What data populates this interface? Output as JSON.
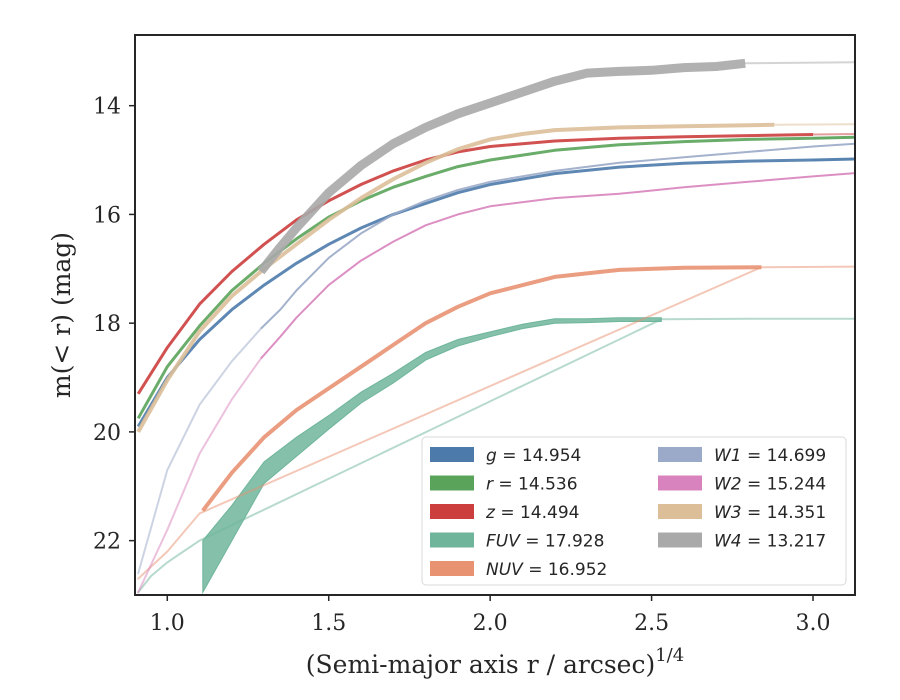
{
  "chart_data": {
    "type": "line",
    "xlabel": "(Semi-major axis r / arcsec)",
    "xlabel_exponent": "1/4",
    "ylabel": "m(< r) (mag)",
    "xlim": [
      0.9,
      3.13
    ],
    "ylim": [
      23.0,
      12.7
    ],
    "y_inverted": true,
    "xticks": [
      1.0,
      1.5,
      2.0,
      2.5,
      3.0
    ],
    "xtick_labels": [
      "1.0",
      "1.5",
      "2.0",
      "2.5",
      "3.0"
    ],
    "yticks": [
      14,
      16,
      18,
      20,
      22
    ],
    "ytick_labels": [
      "14",
      "16",
      "18",
      "20",
      "22"
    ],
    "legend_placement": "lower-right",
    "grid": false,
    "series": [
      {
        "name": "g",
        "label_value": "= 14.954",
        "color": "#4c7bab",
        "band": {
          "x": [
            0.91,
            1.0,
            1.1,
            1.2,
            1.3,
            1.4,
            1.5,
            1.6,
            1.7,
            1.8,
            1.9,
            2.0,
            2.2,
            2.4,
            2.6,
            2.8,
            3.0,
            3.13
          ],
          "y": [
            19.9,
            19.0,
            18.3,
            17.75,
            17.3,
            16.9,
            16.55,
            16.25,
            16.0,
            15.8,
            15.6,
            15.45,
            15.25,
            15.13,
            15.06,
            15.02,
            15.0,
            14.98
          ],
          "width": 3
        },
        "extension": {
          "x": [
            3.0,
            3.13
          ],
          "y": [
            15.0,
            14.98
          ]
        }
      },
      {
        "name": "r",
        "label_value": "= 14.536",
        "color": "#5aa35a",
        "band": {
          "x": [
            0.91,
            1.0,
            1.1,
            1.2,
            1.3,
            1.4,
            1.5,
            1.6,
            1.7,
            1.8,
            1.9,
            2.0,
            2.2,
            2.4,
            2.6,
            2.8,
            3.0,
            3.13
          ],
          "y": [
            19.75,
            18.8,
            18.05,
            17.4,
            16.9,
            16.45,
            16.05,
            15.75,
            15.5,
            15.3,
            15.12,
            15.0,
            14.82,
            14.72,
            14.66,
            14.62,
            14.6,
            14.58
          ],
          "width": 3
        },
        "extension": {
          "x": [
            3.0,
            3.13
          ],
          "y": [
            14.6,
            14.58
          ]
        }
      },
      {
        "name": "z",
        "label_value": "= 14.494",
        "color": "#cc3d3d",
        "band": {
          "x": [
            0.91,
            1.0,
            1.1,
            1.2,
            1.3,
            1.4,
            1.5,
            1.6,
            1.7,
            1.8,
            1.9,
            2.0,
            2.2,
            2.4,
            2.6,
            2.8,
            3.0
          ],
          "y": [
            19.3,
            18.45,
            17.65,
            17.05,
            16.55,
            16.1,
            15.75,
            15.45,
            15.2,
            15.0,
            14.85,
            14.75,
            14.65,
            14.6,
            14.57,
            14.55,
            14.53
          ],
          "width": 3
        },
        "extension": {
          "x": [
            3.0,
            3.13
          ],
          "y": [
            14.53,
            14.52
          ]
        }
      },
      {
        "name": "FUV",
        "label_value": "= 17.928",
        "color": "#6fb59b",
        "band": {
          "x": [
            1.11,
            1.2,
            1.3,
            1.4,
            1.5,
            1.6,
            1.7,
            1.8,
            1.9,
            2.0,
            2.1,
            2.2,
            2.3,
            2.4,
            2.5,
            2.53
          ],
          "y": [
            22.45,
            21.65,
            20.75,
            20.25,
            19.8,
            19.35,
            19.0,
            18.6,
            18.35,
            18.2,
            18.05,
            17.95,
            17.95,
            17.93,
            17.93,
            17.93
          ],
          "width_top": [
            22.0,
            21.35,
            20.55,
            20.1,
            19.7,
            19.27,
            18.92,
            18.54,
            18.3,
            18.16,
            18.02,
            17.92,
            17.92,
            17.9,
            17.9,
            17.9
          ],
          "width_bottom": [
            22.95,
            22.0,
            20.95,
            20.45,
            19.95,
            19.47,
            19.1,
            18.68,
            18.42,
            18.25,
            18.1,
            18.0,
            17.99,
            17.97,
            17.97,
            17.97
          ]
        },
        "extension": {
          "x": [
            0.91,
            0.95,
            1.0,
            1.05,
            1.1,
            2.53,
            2.8,
            3.13
          ],
          "y": [
            22.95,
            22.65,
            22.4,
            22.2,
            22.0,
            17.93,
            17.92,
            17.92
          ]
        }
      },
      {
        "name": "NUV",
        "label_value": "= 16.952",
        "color": "#e89272",
        "band": {
          "x": [
            1.11,
            1.2,
            1.3,
            1.4,
            1.5,
            1.6,
            1.7,
            1.8,
            1.9,
            2.0,
            2.2,
            2.4,
            2.6,
            2.84
          ],
          "y": [
            21.45,
            20.75,
            20.1,
            19.6,
            19.2,
            18.8,
            18.4,
            18.0,
            17.7,
            17.45,
            17.15,
            17.02,
            16.98,
            16.97
          ],
          "width": 4
        },
        "extension": {
          "x": [
            0.91,
            1.0,
            1.1,
            2.84,
            3.13
          ],
          "y": [
            22.7,
            22.2,
            21.5,
            16.97,
            16.96
          ]
        }
      },
      {
        "name": "W1",
        "label_value": "= 14.699",
        "color": "#9aaac8",
        "band": {
          "x": [
            1.29,
            1.35,
            1.4,
            1.5,
            1.6,
            1.7,
            1.8,
            1.9,
            2.0,
            2.2,
            2.4,
            2.6,
            2.8,
            3.0,
            3.13
          ],
          "y": [
            18.1,
            17.75,
            17.4,
            16.8,
            16.35,
            16.0,
            15.75,
            15.55,
            15.4,
            15.2,
            15.05,
            14.95,
            14.85,
            14.75,
            14.7
          ],
          "width": 2
        },
        "extension": {
          "x": [
            0.91,
            1.0,
            1.1,
            1.2,
            1.29
          ],
          "y": [
            22.6,
            20.7,
            19.5,
            18.7,
            18.1
          ]
        }
      },
      {
        "name": "W2",
        "label_value": "= 15.244",
        "color": "#d883bd",
        "band": {
          "x": [
            1.29,
            1.35,
            1.4,
            1.5,
            1.6,
            1.7,
            1.8,
            1.9,
            2.0,
            2.2,
            2.4,
            2.6,
            2.8,
            3.0,
            3.13
          ],
          "y": [
            18.65,
            18.25,
            17.9,
            17.3,
            16.85,
            16.5,
            16.2,
            16.0,
            15.85,
            15.7,
            15.62,
            15.5,
            15.4,
            15.3,
            15.24
          ],
          "width": 2
        },
        "extension": {
          "x": [
            0.91,
            1.0,
            1.1,
            1.2,
            1.29
          ],
          "y": [
            22.95,
            21.8,
            20.4,
            19.4,
            18.65
          ]
        }
      },
      {
        "name": "W3",
        "label_value": "= 14.351",
        "color": "#dcbf99",
        "band": {
          "x": [
            0.91,
            1.0,
            1.1,
            1.2,
            1.3,
            1.4,
            1.5,
            1.6,
            1.7,
            1.8,
            1.9,
            2.0,
            2.1,
            2.2,
            2.4,
            2.6,
            2.8,
            2.88
          ],
          "y": [
            20.0,
            19.05,
            18.15,
            17.5,
            17.0,
            16.55,
            16.1,
            15.7,
            15.35,
            15.05,
            14.8,
            14.62,
            14.52,
            14.45,
            14.4,
            14.38,
            14.36,
            14.35
          ],
          "width": 4
        },
        "extension": {
          "x": [
            2.88,
            3.13
          ],
          "y": [
            14.35,
            14.34
          ]
        }
      },
      {
        "name": "W4",
        "label_value": "= 13.217",
        "color": "#a9a9a9",
        "band": {
          "x": [
            1.29,
            1.35,
            1.4,
            1.5,
            1.6,
            1.7,
            1.8,
            1.9,
            2.0,
            2.1,
            2.2,
            2.3,
            2.4,
            2.5,
            2.6,
            2.7,
            2.79
          ],
          "y": [
            17.05,
            16.6,
            16.25,
            15.6,
            15.1,
            14.7,
            14.4,
            14.15,
            13.95,
            13.75,
            13.55,
            13.4,
            13.37,
            13.35,
            13.3,
            13.28,
            13.22
          ],
          "width": 9
        },
        "extension": {
          "x": [
            2.79,
            3.13
          ],
          "y": [
            13.22,
            13.2
          ]
        }
      }
    ]
  }
}
